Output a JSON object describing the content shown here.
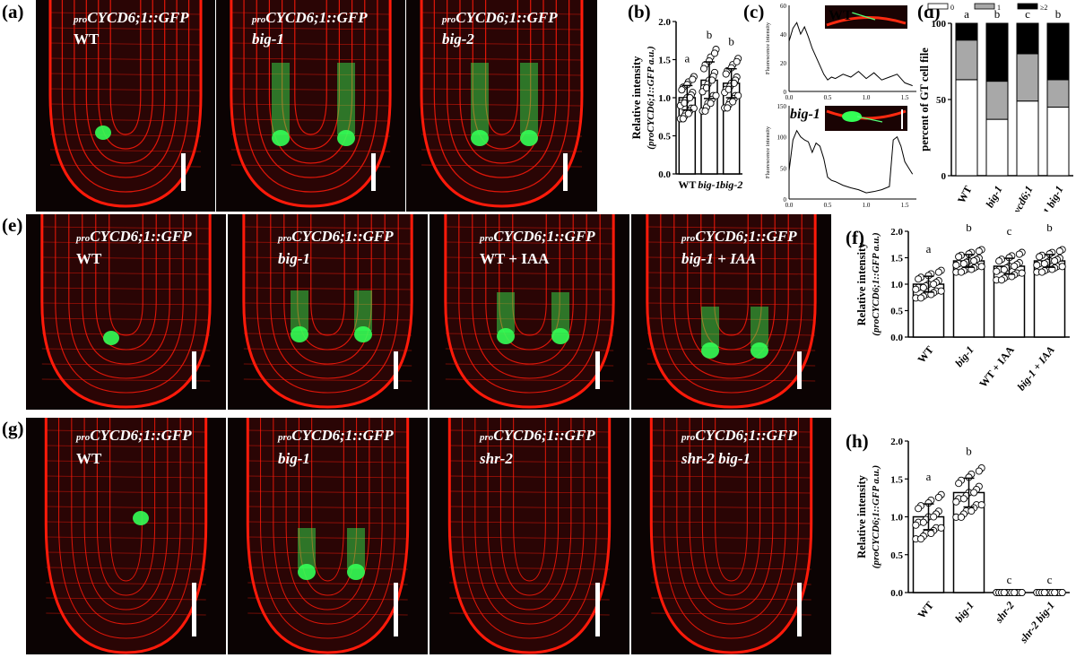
{
  "panel_labels": [
    "(a)",
    "(b)",
    "(c)",
    "(d)",
    "(e)",
    "(f)",
    "(g)",
    "(h)"
  ],
  "micro_prefix": "pro",
  "micro_reporter": "CYCD6;1::GFP",
  "row_a": {
    "genotypes": [
      "WT",
      "big-1",
      "big-2"
    ]
  },
  "row_e": {
    "genotypes": [
      "WT",
      "big-1",
      "WT + IAA",
      "big-1 + IAA"
    ]
  },
  "row_g": {
    "genotypes": [
      "WT",
      "big-1",
      "shr-2",
      "shr-2 big-1"
    ]
  },
  "panel_c": {
    "wt_label": "WT",
    "big_label": "big-1",
    "ylabel": "Fluorescence intensity"
  },
  "colors": {
    "membrane": "#ff1a0a",
    "gfp": "#33ff55",
    "bar": "#ffffff",
    "gray": "#a8a8a8",
    "black": "#000000"
  },
  "chart_data": [
    {
      "id": "b",
      "type": "bar",
      "categories": [
        "WT",
        "big-1",
        "big-2"
      ],
      "values": [
        1.0,
        1.23,
        1.19
      ],
      "errors": [
        0.16,
        0.24,
        0.19
      ],
      "letters": [
        "a",
        "b",
        "b"
      ],
      "ylabel": "Relative intensity",
      "ylabel2": "(proCYCD6;1::GFP a.u.)",
      "ylim": [
        0,
        2.0
      ],
      "yticks": [
        "0.0",
        "0.5",
        "1.0",
        "1.5",
        "2.0"
      ]
    },
    {
      "id": "c-wt",
      "type": "line",
      "x": [
        0.0,
        0.05,
        0.1,
        0.15,
        0.2,
        0.25,
        0.3,
        0.35,
        0.4,
        0.45,
        0.5,
        0.55,
        0.6,
        0.7,
        0.8,
        0.9,
        1.0,
        1.1,
        1.2,
        1.3,
        1.4,
        1.5,
        1.6
      ],
      "y": [
        35,
        44,
        48,
        40,
        45,
        38,
        30,
        24,
        18,
        12,
        8,
        10,
        9,
        12,
        10,
        14,
        9,
        13,
        8,
        10,
        12,
        6,
        4
      ],
      "xticks": [
        "0.0",
        "0.5",
        "1.0",
        "1.5"
      ],
      "yticks": [
        "0",
        "20",
        "40",
        "60"
      ],
      "ylim": [
        0,
        60
      ],
      "xlim": [
        0,
        1.65
      ]
    },
    {
      "id": "c-big1",
      "type": "line",
      "x": [
        0.0,
        0.05,
        0.1,
        0.15,
        0.2,
        0.25,
        0.3,
        0.35,
        0.4,
        0.45,
        0.5,
        0.55,
        0.6,
        0.7,
        0.8,
        0.9,
        1.0,
        1.1,
        1.2,
        1.3,
        1.35,
        1.4,
        1.45,
        1.5,
        1.55,
        1.6
      ],
      "y": [
        45,
        95,
        110,
        100,
        95,
        92,
        75,
        90,
        85,
        65,
        35,
        30,
        28,
        22,
        18,
        15,
        10,
        12,
        15,
        20,
        95,
        100,
        85,
        60,
        50,
        40
      ],
      "xticks": [
        "0.0",
        "0.5",
        "1.0",
        "1.5"
      ],
      "yticks": [
        "0",
        "50",
        "100",
        "150"
      ],
      "ylim": [
        0,
        150
      ],
      "xlim": [
        0,
        1.65
      ]
    },
    {
      "id": "d",
      "type": "bar",
      "stacked": true,
      "categories": [
        "WT",
        "big-1",
        "cycd6;1",
        "cycd6;1 big-1"
      ],
      "series": [
        {
          "name": "0",
          "values": [
            63,
            37,
            49,
            45
          ]
        },
        {
          "name": "1",
          "values": [
            26,
            25,
            31,
            18
          ]
        },
        {
          "name": "≥2",
          "values": [
            11,
            38,
            20,
            37
          ]
        }
      ],
      "letters": [
        "a",
        "b",
        "c",
        "b"
      ],
      "ylabel": "percent of GT cell file",
      "ylim": [
        0,
        100
      ],
      "yticks": [
        "0",
        "50",
        "100"
      ]
    },
    {
      "id": "f",
      "type": "bar",
      "categories": [
        "WT",
        "big-1",
        "WT + IAA",
        "big-1 + IAA"
      ],
      "values": [
        1.0,
        1.44,
        1.34,
        1.44
      ],
      "errors": [
        0.15,
        0.12,
        0.15,
        0.12
      ],
      "letters": [
        "a",
        "b",
        "c",
        "b"
      ],
      "ylabel": "Relative intensity",
      "ylabel2": "(proCYCD6;1::GFP a.u.)",
      "ylim": [
        0,
        2.0
      ],
      "yticks": [
        "0.0",
        "0.5",
        "1.0",
        "1.5",
        "2.0"
      ]
    },
    {
      "id": "h",
      "type": "bar",
      "categories": [
        "WT",
        "big-1",
        "shr-2",
        "shr-2 big-1"
      ],
      "values": [
        1.0,
        1.32,
        0.0,
        0.0
      ],
      "errors": [
        0.17,
        0.19,
        0.0,
        0.0
      ],
      "letters": [
        "a",
        "b",
        "c",
        "c"
      ],
      "ylabel": "Relative intensity",
      "ylabel2": "(proCYCD6;1::GFP a.u.)",
      "ylim": [
        0,
        2.0
      ],
      "yticks": [
        "0.0",
        "0.5",
        "1.0",
        "1.5",
        "2.0"
      ]
    }
  ]
}
